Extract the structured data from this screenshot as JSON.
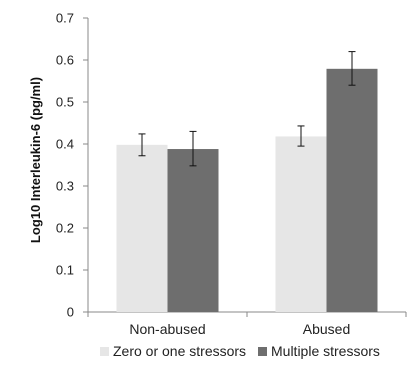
{
  "chart_data": {
    "type": "bar",
    "ylabel": "Log10 Interleukin-6 (pg/ml)",
    "xlabel": "",
    "ylim": [
      0,
      0.7
    ],
    "yticks": [
      "0",
      "0.1",
      "0.2",
      "0.3",
      "0.4",
      "0.5",
      "0.6",
      "0.7"
    ],
    "categories": [
      "Non-abused",
      "Abused"
    ],
    "series": [
      {
        "name": "Zero or one stressors",
        "color": "#e6e6e6",
        "values": [
          0.398,
          0.418
        ],
        "error": [
          [
            0.372,
            0.424
          ],
          [
            0.395,
            0.443
          ]
        ]
      },
      {
        "name": "Multiple stressors",
        "color": "#6e6e6e",
        "values": [
          0.388,
          0.579
        ],
        "error": [
          [
            0.348,
            0.43
          ],
          [
            0.54,
            0.62
          ]
        ]
      }
    ],
    "legend_position": "bottom",
    "grid": false
  }
}
